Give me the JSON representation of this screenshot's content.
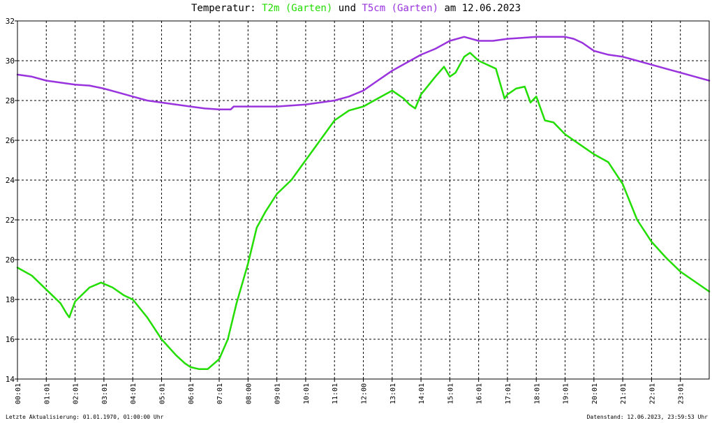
{
  "title": {
    "prefix": "Temperatur: ",
    "series1": "T2m (Garten)",
    "mid": " und ",
    "series2": "T5cm (Garten)",
    "suffix": " am 12.06.2023"
  },
  "footer": {
    "left": "Letzte Aktualisierung: 01.01.1970, 01:00:00 Uhr",
    "right": "Datenstand: 12.06.2023, 23:59:53 Uhr"
  },
  "colors": {
    "series1": "#22dd00",
    "series2": "#9933dd",
    "grid": "#000000",
    "background": "#ffffff"
  },
  "chart_data": {
    "type": "line",
    "title": "Temperatur: T2m (Garten) und T5cm (Garten) am 12.06.2023",
    "xlabel": "",
    "ylabel": "",
    "xlim": [
      0,
      24
    ],
    "ylim": [
      14,
      32
    ],
    "grid": true,
    "legend": "in-title",
    "x_ticks": [
      "00:01",
      "01:01",
      "02:01",
      "03:01",
      "04:01",
      "05:01",
      "06:01",
      "07:01",
      "08:00",
      "09:01",
      "10:01",
      "11:01",
      "12:00",
      "13:01",
      "14:01",
      "15:01",
      "16:01",
      "17:01",
      "18:01",
      "19:01",
      "20:01",
      "21:01",
      "22:01",
      "23:01"
    ],
    "y_ticks": [
      14,
      16,
      18,
      20,
      22,
      24,
      26,
      28,
      30,
      32
    ],
    "series": [
      {
        "name": "T2m (Garten)",
        "color": "#22dd00",
        "x": [
          0,
          0.5,
          1,
          1.5,
          1.7,
          1.8,
          2,
          2.5,
          2.9,
          3.3,
          3.7,
          4,
          4.5,
          5,
          5.5,
          5.8,
          6,
          6.3,
          6.6,
          7,
          7.3,
          7.6,
          8,
          8.3,
          8.6,
          9,
          9.5,
          10,
          10.5,
          11,
          11.5,
          12,
          12.5,
          13,
          13.4,
          13.6,
          13.8,
          14,
          14.5,
          14.8,
          15,
          15.2,
          15.5,
          15.7,
          16,
          16.3,
          16.6,
          16.9,
          17,
          17.3,
          17.6,
          17.8,
          18,
          18.3,
          18.6,
          19,
          19.5,
          20,
          20.5,
          21,
          21.5,
          22,
          22.5,
          23,
          23.5,
          24
        ],
        "values": [
          19.6,
          19.2,
          18.5,
          17.8,
          17.3,
          17.1,
          17.9,
          18.6,
          18.85,
          18.6,
          18.2,
          18.0,
          17.1,
          16.0,
          15.2,
          14.8,
          14.6,
          14.5,
          14.5,
          15.0,
          16.0,
          17.8,
          19.8,
          21.6,
          22.4,
          23.3,
          24.0,
          25.0,
          26.0,
          27.0,
          27.5,
          27.7,
          28.1,
          28.5,
          28.1,
          27.8,
          27.6,
          28.3,
          29.2,
          29.7,
          29.2,
          29.4,
          30.2,
          30.4,
          30.0,
          29.8,
          29.6,
          28.1,
          28.3,
          28.6,
          28.7,
          27.9,
          28.2,
          27.0,
          26.9,
          26.3,
          25.8,
          25.3,
          24.9,
          23.8,
          22.0,
          20.9,
          20.1,
          19.4,
          18.9,
          18.4
        ]
      },
      {
        "name": "T5cm (Garten)",
        "color": "#9933dd",
        "x": [
          0,
          0.5,
          1,
          1.5,
          2,
          2.5,
          3,
          3.5,
          4,
          4.5,
          5,
          5.5,
          6,
          6.5,
          7,
          7.4,
          7.5,
          8,
          9,
          10,
          10.5,
          11,
          11.5,
          12,
          12.5,
          13,
          13.5,
          14,
          14.5,
          15,
          15.5,
          16,
          16.5,
          17,
          17.5,
          18,
          18.5,
          19,
          19.3,
          19.6,
          20,
          20.5,
          21,
          21.5,
          22,
          22.5,
          23,
          23.5,
          24
        ],
        "values": [
          29.3,
          29.2,
          29.0,
          28.9,
          28.8,
          28.75,
          28.6,
          28.4,
          28.2,
          28.0,
          27.9,
          27.8,
          27.7,
          27.6,
          27.55,
          27.55,
          27.7,
          27.7,
          27.7,
          27.8,
          27.9,
          28.0,
          28.2,
          28.5,
          29.0,
          29.5,
          29.9,
          30.3,
          30.6,
          31.0,
          31.2,
          31.0,
          31.0,
          31.1,
          31.15,
          31.2,
          31.2,
          31.2,
          31.1,
          30.9,
          30.5,
          30.3,
          30.2,
          30.0,
          29.8,
          29.6,
          29.4,
          29.2,
          29.0
        ]
      }
    ]
  }
}
